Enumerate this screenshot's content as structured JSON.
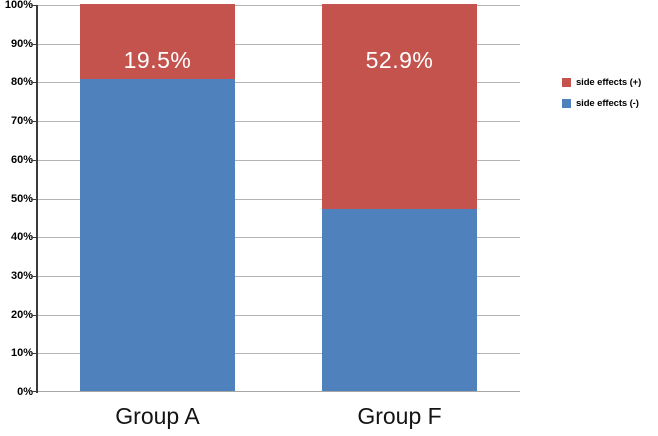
{
  "chart_data": {
    "type": "bar",
    "variant": "100-percent-stacked-column",
    "title": "",
    "xlabel": "",
    "ylabel": "",
    "categories": [
      "Group A",
      "Group F"
    ],
    "series": [
      {
        "name": "side effects (-)",
        "color": "#4f81bd",
        "values": [
          80.5,
          47.1
        ]
      },
      {
        "name": "side effects (+)",
        "color": "#c4534e",
        "values": [
          19.5,
          52.9
        ]
      }
    ],
    "bar_labels": [
      "19.5%",
      "52.9%"
    ],
    "ylim": [
      0,
      100
    ],
    "ytick_step": 10,
    "ytick_labels": [
      "0%",
      "10%",
      "20%",
      "30%",
      "40%",
      "50%",
      "60%",
      "70%",
      "80%",
      "90%",
      "100%"
    ],
    "grid": true,
    "grid_color": "#b5b5b5",
    "axis_color": "#3b3b3b",
    "baseline_color": "#a6a6a6",
    "bar_label_color": "#ffffff",
    "legend_position": "right",
    "legend": [
      "side effects (+)",
      "side effects (-)"
    ]
  }
}
